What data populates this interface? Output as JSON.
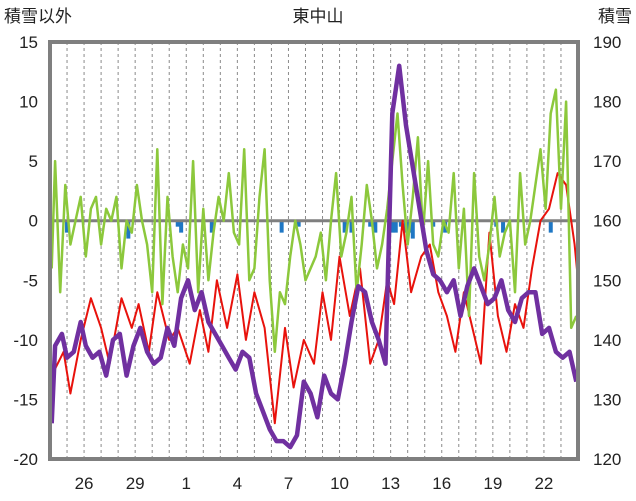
{
  "chart_data": {
    "type": "line",
    "title": "東中山",
    "left_axis_label": "積雪以外",
    "right_axis_label": "積雪",
    "left_ylim": [
      -20,
      15
    ],
    "left_yticks": [
      15,
      10,
      5,
      0,
      -5,
      -10,
      -15,
      -20
    ],
    "right_ylim": [
      120,
      190
    ],
    "right_yticks": [
      190,
      180,
      170,
      160,
      150,
      140,
      130,
      120
    ],
    "x_tick_labels": [
      "26",
      "29",
      "1",
      "4",
      "7",
      "10",
      "13",
      "16",
      "19",
      "22"
    ],
    "x_tick_days": [
      2,
      5,
      8,
      11,
      14,
      17,
      20,
      23,
      26,
      29
    ],
    "x_range_days": [
      0,
      31
    ],
    "grid": "vertical dashed daily",
    "colors": {
      "precip_bars": "#1f77c4",
      "red_series": "#e8120c",
      "green_series": "#8cc83c",
      "purple_series": "#7030a0",
      "zero_line": "#7f7f7f",
      "frame": "#7f7f7f"
    },
    "series": [
      {
        "axis": "left",
        "color": "#e8120c",
        "x": [
          0.1,
          0.8,
          1.2,
          1.8,
          2.4,
          3.0,
          3.5,
          4.2,
          4.8,
          5.2,
          5.8,
          6.3,
          7.0,
          7.5,
          8.2,
          8.8,
          9.3,
          9.8,
          10.4,
          11.0,
          11.5,
          12.0,
          12.6,
          13.2,
          13.8,
          14.3,
          14.9,
          15.5,
          16.0,
          16.5,
          17.0,
          17.6,
          18.2,
          18.8,
          19.3,
          19.8,
          20.2,
          20.7,
          21.2,
          21.8,
          22.3,
          22.8,
          23.3,
          23.8,
          24.3,
          24.8,
          25.3,
          25.8,
          26.3,
          26.8,
          27.3,
          27.8,
          28.3,
          28.8,
          29.3,
          29.8,
          30.3,
          30.8,
          31.0
        ],
        "y": [
          -13,
          -11,
          -14.5,
          -10,
          -6.5,
          -9,
          -12,
          -6.5,
          -9,
          -7,
          -11,
          -6,
          -10,
          -9,
          -12,
          -7.5,
          -11,
          -5,
          -9,
          -4.5,
          -10,
          -6,
          -9,
          -17,
          -9,
          -14,
          -10,
          -12,
          -6,
          -10,
          -3,
          -8,
          -4,
          -12,
          -10,
          -5,
          -7,
          0,
          -6,
          -3,
          -2,
          -6,
          -8,
          -11,
          -6,
          -9,
          -12,
          -1,
          -8,
          -11,
          -7,
          -9,
          -4,
          0,
          1,
          4,
          3,
          -2,
          -5
        ]
      },
      {
        "axis": "left",
        "color": "#8cc83c",
        "x": [
          0.1,
          0.3,
          0.6,
          0.9,
          1.2,
          1.5,
          1.8,
          2.1,
          2.4,
          2.7,
          3.0,
          3.3,
          3.6,
          3.9,
          4.2,
          4.5,
          4.8,
          5.1,
          5.4,
          5.7,
          6.0,
          6.3,
          6.6,
          6.9,
          7.2,
          7.5,
          7.8,
          8.1,
          8.4,
          8.7,
          9.0,
          9.3,
          9.6,
          9.9,
          10.2,
          10.5,
          10.8,
          11.1,
          11.4,
          11.7,
          12.0,
          12.3,
          12.6,
          12.9,
          13.2,
          13.5,
          13.8,
          14.1,
          14.4,
          14.7,
          15.0,
          15.3,
          15.6,
          15.9,
          16.2,
          16.5,
          16.8,
          17.1,
          17.4,
          17.7,
          18.0,
          18.3,
          18.6,
          18.9,
          19.2,
          19.5,
          19.8,
          20.1,
          20.4,
          20.7,
          21.0,
          21.3,
          21.6,
          21.9,
          22.2,
          22.5,
          22.8,
          23.1,
          23.4,
          23.7,
          24.0,
          24.3,
          24.6,
          24.9,
          25.2,
          25.5,
          25.8,
          26.1,
          26.4,
          26.7,
          27.0,
          27.3,
          27.6,
          27.9,
          28.2,
          28.5,
          28.8,
          29.1,
          29.4,
          29.7,
          30.0,
          30.3,
          30.6,
          30.9
        ],
        "y": [
          -4,
          5,
          -6,
          3,
          -2,
          0,
          2,
          -3,
          1,
          2,
          -2,
          1,
          0,
          2,
          -4,
          0,
          -1,
          3,
          0,
          -2,
          -6,
          6,
          -7,
          2,
          -3,
          -6,
          -2,
          -4,
          5,
          -6,
          1,
          -5,
          -1,
          2,
          0,
          4,
          -1,
          -2,
          6,
          -5,
          -4,
          2,
          6,
          -5,
          -11,
          -6,
          -7,
          -3,
          0,
          -2,
          -5,
          -4,
          -3,
          -1,
          -5,
          0,
          4,
          -3,
          -1,
          2,
          -6,
          -2,
          3,
          0,
          -4,
          -2,
          1,
          5,
          9,
          3,
          -2,
          2,
          7,
          -1,
          5,
          -2,
          -3,
          0,
          -1,
          4,
          -4,
          1,
          -8,
          4,
          -3,
          -5,
          -2,
          2,
          -3,
          -1,
          0,
          -6,
          4,
          -2,
          0,
          3,
          6,
          1,
          9,
          11,
          1,
          10,
          -9,
          -8
        ]
      },
      {
        "axis": "right",
        "color": "#7030a0",
        "x": [
          0.1,
          0.3,
          0.7,
          1.0,
          1.4,
          1.8,
          2.1,
          2.5,
          2.9,
          3.3,
          3.7,
          4.1,
          4.5,
          4.9,
          5.3,
          5.7,
          6.1,
          6.5,
          6.9,
          7.3,
          7.7,
          8.1,
          8.5,
          8.9,
          9.3,
          9.7,
          10.1,
          10.5,
          10.9,
          11.3,
          11.7,
          12.1,
          12.5,
          12.9,
          13.3,
          13.7,
          14.1,
          14.5,
          14.9,
          15.3,
          15.7,
          16.1,
          16.5,
          16.9,
          17.3,
          17.7,
          18.1,
          18.5,
          18.9,
          19.3,
          19.7,
          20.1,
          20.5,
          20.9,
          21.3,
          21.7,
          22.1,
          22.5,
          22.9,
          23.3,
          23.7,
          24.1,
          24.5,
          24.9,
          25.3,
          25.7,
          26.1,
          26.5,
          26.9,
          27.3,
          27.7,
          28.1,
          28.5,
          28.9,
          29.3,
          29.7,
          30.1,
          30.5,
          30.9
        ],
        "y": [
          126,
          139,
          141,
          137,
          138,
          143,
          139,
          137,
          138,
          134,
          140,
          141,
          134,
          139,
          142,
          138,
          136,
          137,
          142,
          139,
          147,
          150,
          145,
          148,
          143,
          141,
          139,
          137,
          135,
          138,
          137,
          131,
          128,
          125,
          123,
          123,
          122,
          124,
          133,
          131,
          127,
          134,
          131,
          130,
          136,
          143,
          149,
          148,
          143,
          140,
          136,
          178,
          186,
          176,
          169,
          162,
          155,
          151,
          150,
          148,
          150,
          144,
          149,
          152,
          149,
          146,
          147,
          150,
          145,
          143,
          147,
          148,
          148,
          141,
          142,
          138,
          137,
          138,
          133
        ]
      }
    ],
    "precip_bars": {
      "axis": "left",
      "color": "#1f77c4",
      "x": [
        1.0,
        4.6,
        7.5,
        7.7,
        9.5,
        13.6,
        14.6,
        17.3,
        17.7,
        18.8,
        19.1,
        20.1,
        20.3,
        20.6,
        20.9,
        21.1,
        21.3,
        22.5,
        23.2,
        26.2,
        26.6,
        29.4
      ],
      "y": [
        -1,
        -1.5,
        -0.5,
        -1,
        -1,
        -1,
        -0.5,
        -1,
        -1,
        -0.5,
        -1,
        -1,
        -1,
        -0.5,
        -1,
        -1,
        -1.5,
        -0.5,
        -1,
        -0.5,
        -1,
        -1
      ]
    }
  }
}
